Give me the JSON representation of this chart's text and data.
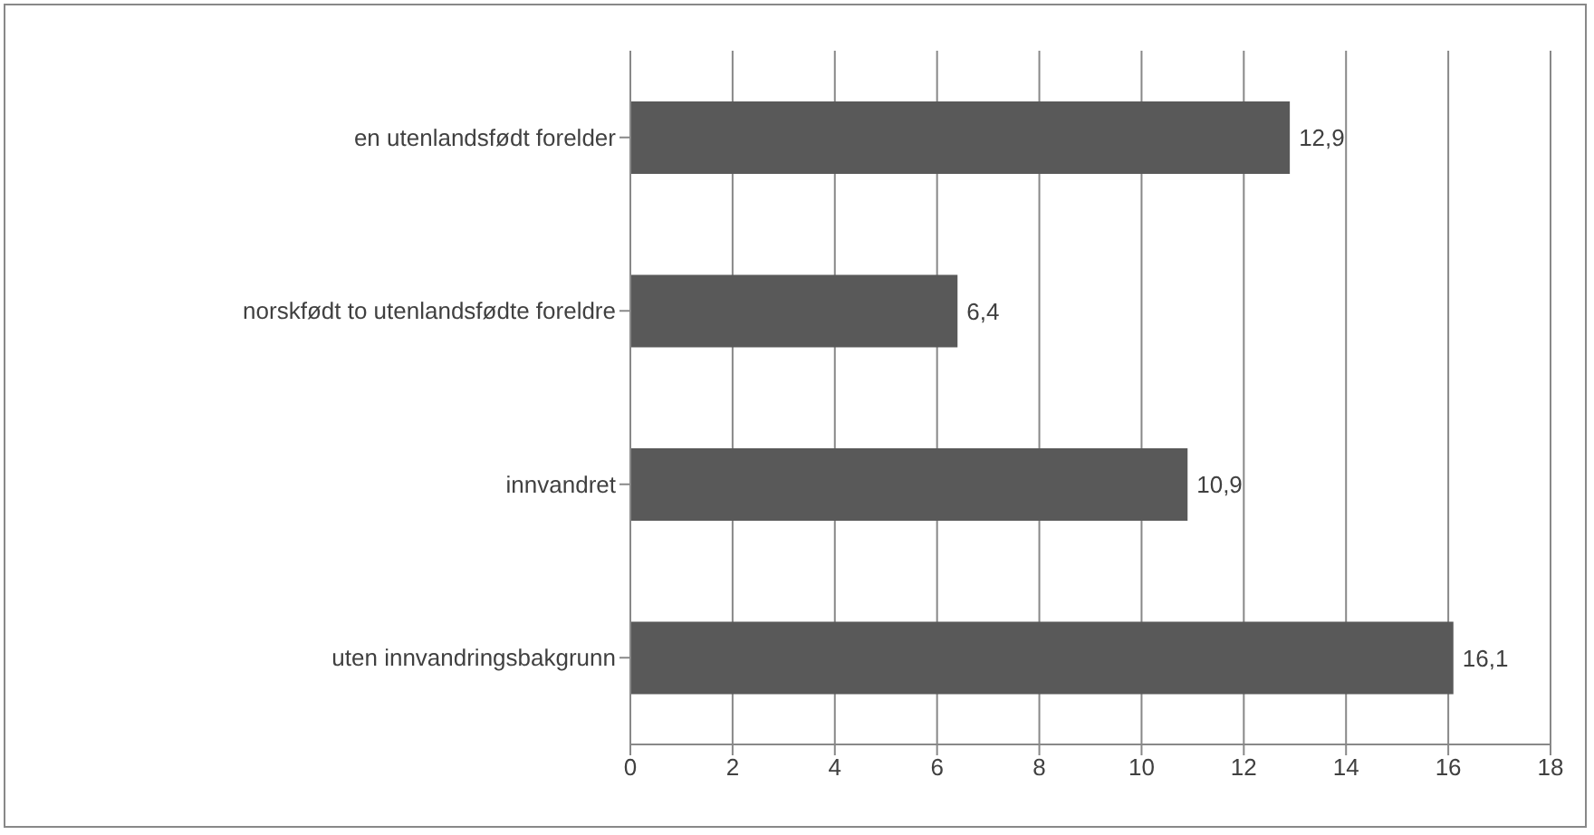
{
  "chart_data": {
    "type": "bar",
    "orientation": "horizontal",
    "categories": [
      "en utenlandsfødt forelder",
      "norskfødt to utenlandsfødte foreldre",
      "innvandret",
      "uten innvandringsbakgrunn"
    ],
    "values": [
      12.9,
      6.4,
      10.9,
      16.1
    ],
    "value_labels": [
      "12,9",
      "6,4",
      "10,9",
      "16,1"
    ],
    "color": "#595959",
    "xlim": [
      0,
      18
    ],
    "xticks": [
      0,
      2,
      4,
      6,
      8,
      10,
      12,
      14,
      16,
      18
    ],
    "grid": "x"
  }
}
